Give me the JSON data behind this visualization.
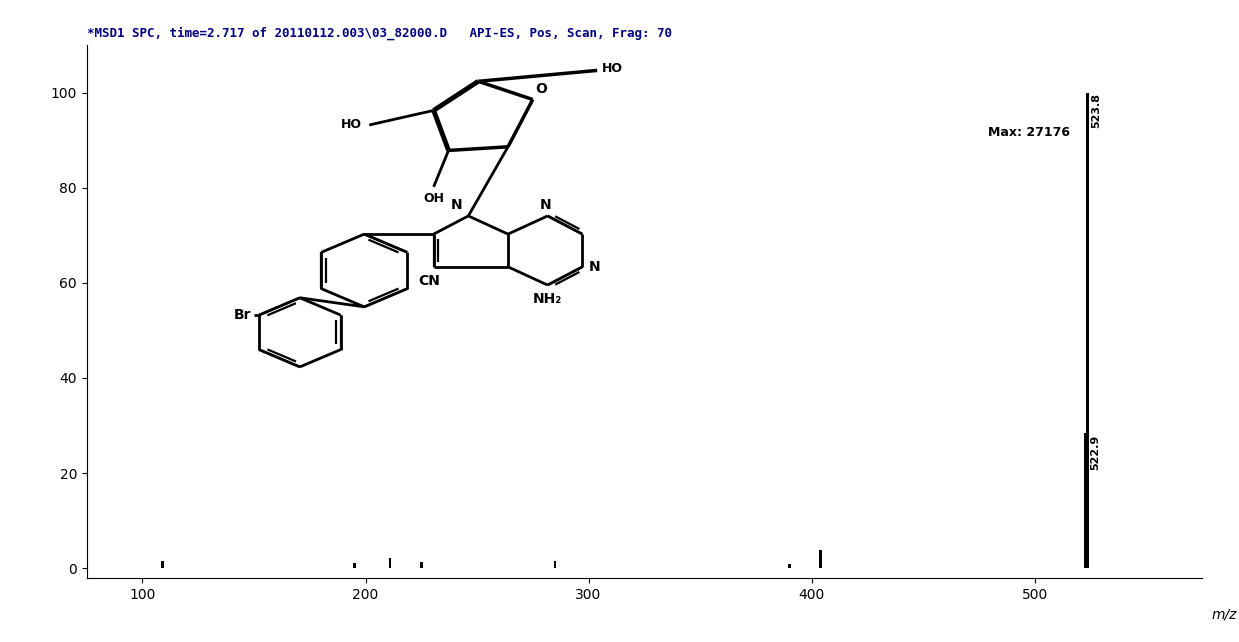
{
  "title": "*MSD1 SPC, time=2.717 of 20110112.003\\03_82000.D   API-ES, Pos, Scan, Frag: 70",
  "xlabel": "m/z",
  "xlim": [
    75,
    575
  ],
  "ylim": [
    -2,
    110
  ],
  "yticks": [
    0,
    20,
    40,
    60,
    80,
    100
  ],
  "xticks": [
    100,
    200,
    300,
    400,
    500
  ],
  "background_color": "#ffffff",
  "title_color": "#000080",
  "title_fontsize": 9,
  "annotation_max": "Max: 27176",
  "annotation_mz": "523.8",
  "peaks": [
    {
      "mz": 109.0,
      "intensity": 1.5
    },
    {
      "mz": 195.0,
      "intensity": 1.2
    },
    {
      "mz": 211.0,
      "intensity": 2.2
    },
    {
      "mz": 225.0,
      "intensity": 1.4
    },
    {
      "mz": 285.0,
      "intensity": 1.5
    },
    {
      "mz": 390.0,
      "intensity": 1.0
    },
    {
      "mz": 404.0,
      "intensity": 3.8
    },
    {
      "mz": 522.9,
      "intensity": 28.5
    },
    {
      "mz": 523.8,
      "intensity": 100.0
    }
  ],
  "peak_label_522": "522.9",
  "peak_label_523": "523.8",
  "axis_color": "#000000",
  "tick_fontsize": 10,
  "label_fontsize": 10,
  "bar_color": "#000000",
  "bar_width": 1.2
}
